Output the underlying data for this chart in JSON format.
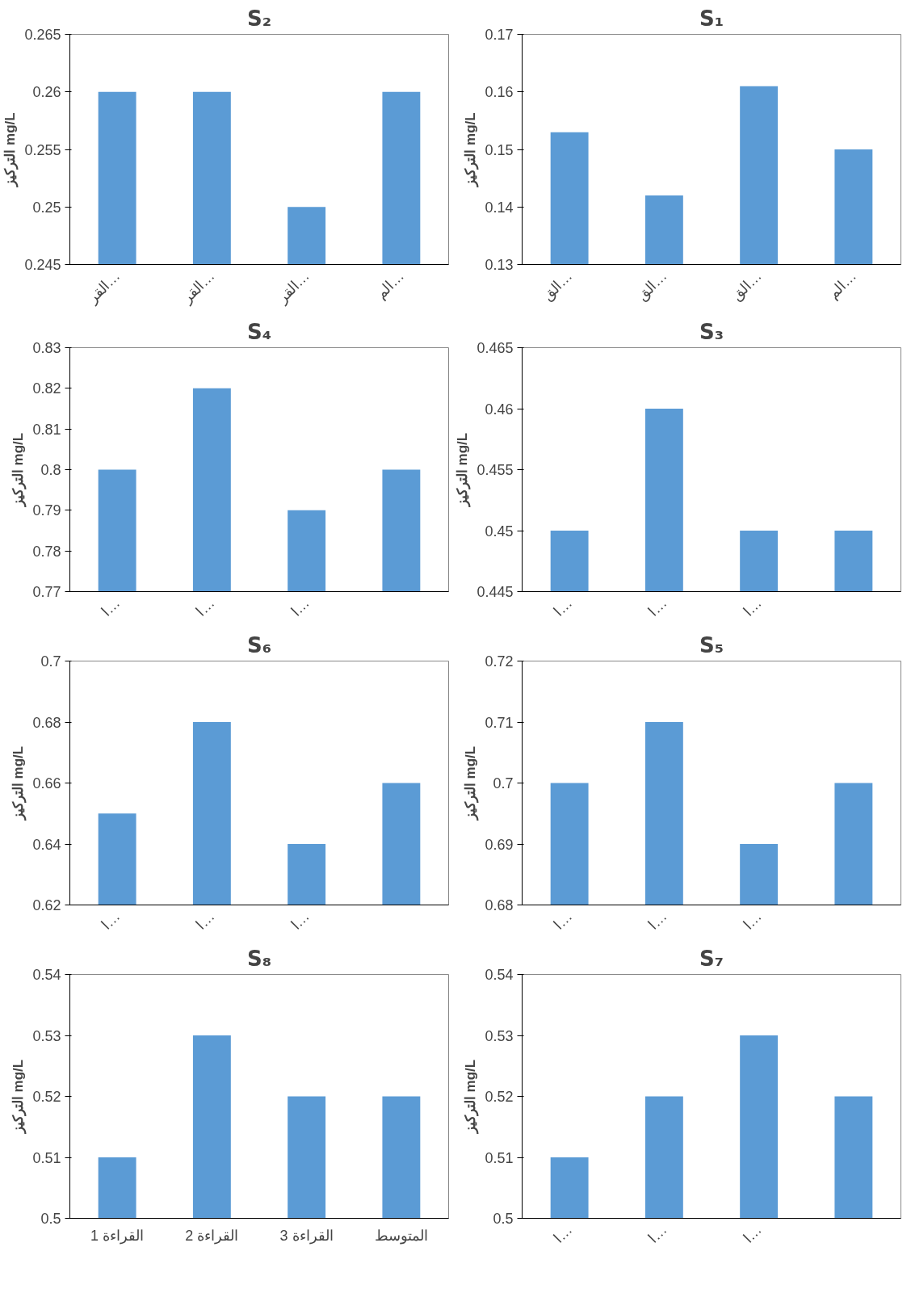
{
  "chart_data": [
    {
      "type": "bar",
      "title": "S₂",
      "ylabel": "التركيز mg/L",
      "categories": [
        "القر…",
        "القر…",
        "القر…",
        "الم…"
      ],
      "values": [
        0.26,
        0.26,
        0.25,
        0.26
      ],
      "color": "#5b9bd5",
      "ylim": [
        0.245,
        0.265
      ],
      "yticks": [
        0.245,
        0.25,
        0.255,
        0.26,
        0.265
      ],
      "grid": false
    },
    {
      "type": "bar",
      "title": "S₁",
      "ylabel": "التركيز mg/L",
      "categories": [
        "الق…",
        "الق…",
        "الق…",
        "الم…"
      ],
      "values": [
        0.153,
        0.142,
        0.161,
        0.15
      ],
      "color": "#5b9bd5",
      "ylim": [
        0.13,
        0.17
      ],
      "yticks": [
        0.13,
        0.14,
        0.15,
        0.16,
        0.17
      ],
      "grid": false
    },
    {
      "type": "bar",
      "title": "S₄",
      "ylabel": "التركيز mg/L",
      "categories": [
        "ا…",
        "ا…",
        "ا…",
        null
      ],
      "values": [
        0.8,
        0.82,
        0.79,
        0.8
      ],
      "color": "#5b9bd5",
      "ylim": [
        0.77,
        0.83
      ],
      "yticks": [
        0.77,
        0.78,
        0.79,
        0.8,
        0.81,
        0.82,
        0.83
      ],
      "grid": false
    },
    {
      "type": "bar",
      "title": "S₃",
      "ylabel": "التركيز mg/L",
      "categories": [
        "ا…",
        "ا…",
        "ا…",
        null
      ],
      "values": [
        0.45,
        0.46,
        0.45,
        0.45
      ],
      "color": "#5b9bd5",
      "ylim": [
        0.445,
        0.465
      ],
      "yticks": [
        0.445,
        0.45,
        0.455,
        0.46,
        0.465
      ],
      "grid": false
    },
    {
      "type": "bar",
      "title": "S₆",
      "ylabel": "التركيز mg/L",
      "categories": [
        "ا…",
        "ا…",
        "ا…",
        null
      ],
      "values": [
        0.65,
        0.68,
        0.64,
        0.66
      ],
      "color": "#5b9bd5",
      "ylim": [
        0.62,
        0.7
      ],
      "yticks": [
        0.62,
        0.64,
        0.66,
        0.68,
        0.7
      ],
      "grid": false
    },
    {
      "type": "bar",
      "title": "S₅",
      "ylabel": "التركيز mg/L",
      "categories": [
        "ا…",
        "ا…",
        "ا…",
        null
      ],
      "values": [
        0.7,
        0.71,
        0.69,
        0.7
      ],
      "color": "#5b9bd5",
      "ylim": [
        0.68,
        0.72
      ],
      "yticks": [
        0.68,
        0.69,
        0.7,
        0.71,
        0.72
      ],
      "grid": false
    },
    {
      "type": "bar",
      "title": "S₈",
      "ylabel": "التركيز mg/L",
      "categories": [
        "القراءة 1",
        "القراءة 2",
        "القراءة 3",
        "المتوسط"
      ],
      "values": [
        0.51,
        0.53,
        0.52,
        0.52
      ],
      "color": "#5b9bd5",
      "ylim": [
        0.5,
        0.54
      ],
      "yticks": [
        0.5,
        0.51,
        0.52,
        0.53,
        0.54
      ],
      "grid": false
    },
    {
      "type": "bar",
      "title": "S₇",
      "ylabel": "التركيز mg/L",
      "categories": [
        "ا…",
        "ا…",
        "ا…",
        null
      ],
      "values": [
        0.51,
        0.52,
        0.53,
        0.52
      ],
      "color": "#5b9bd5",
      "ylim": [
        0.5,
        0.54
      ],
      "yticks": [
        0.5,
        0.51,
        0.52,
        0.53,
        0.54
      ],
      "grid": false
    }
  ]
}
